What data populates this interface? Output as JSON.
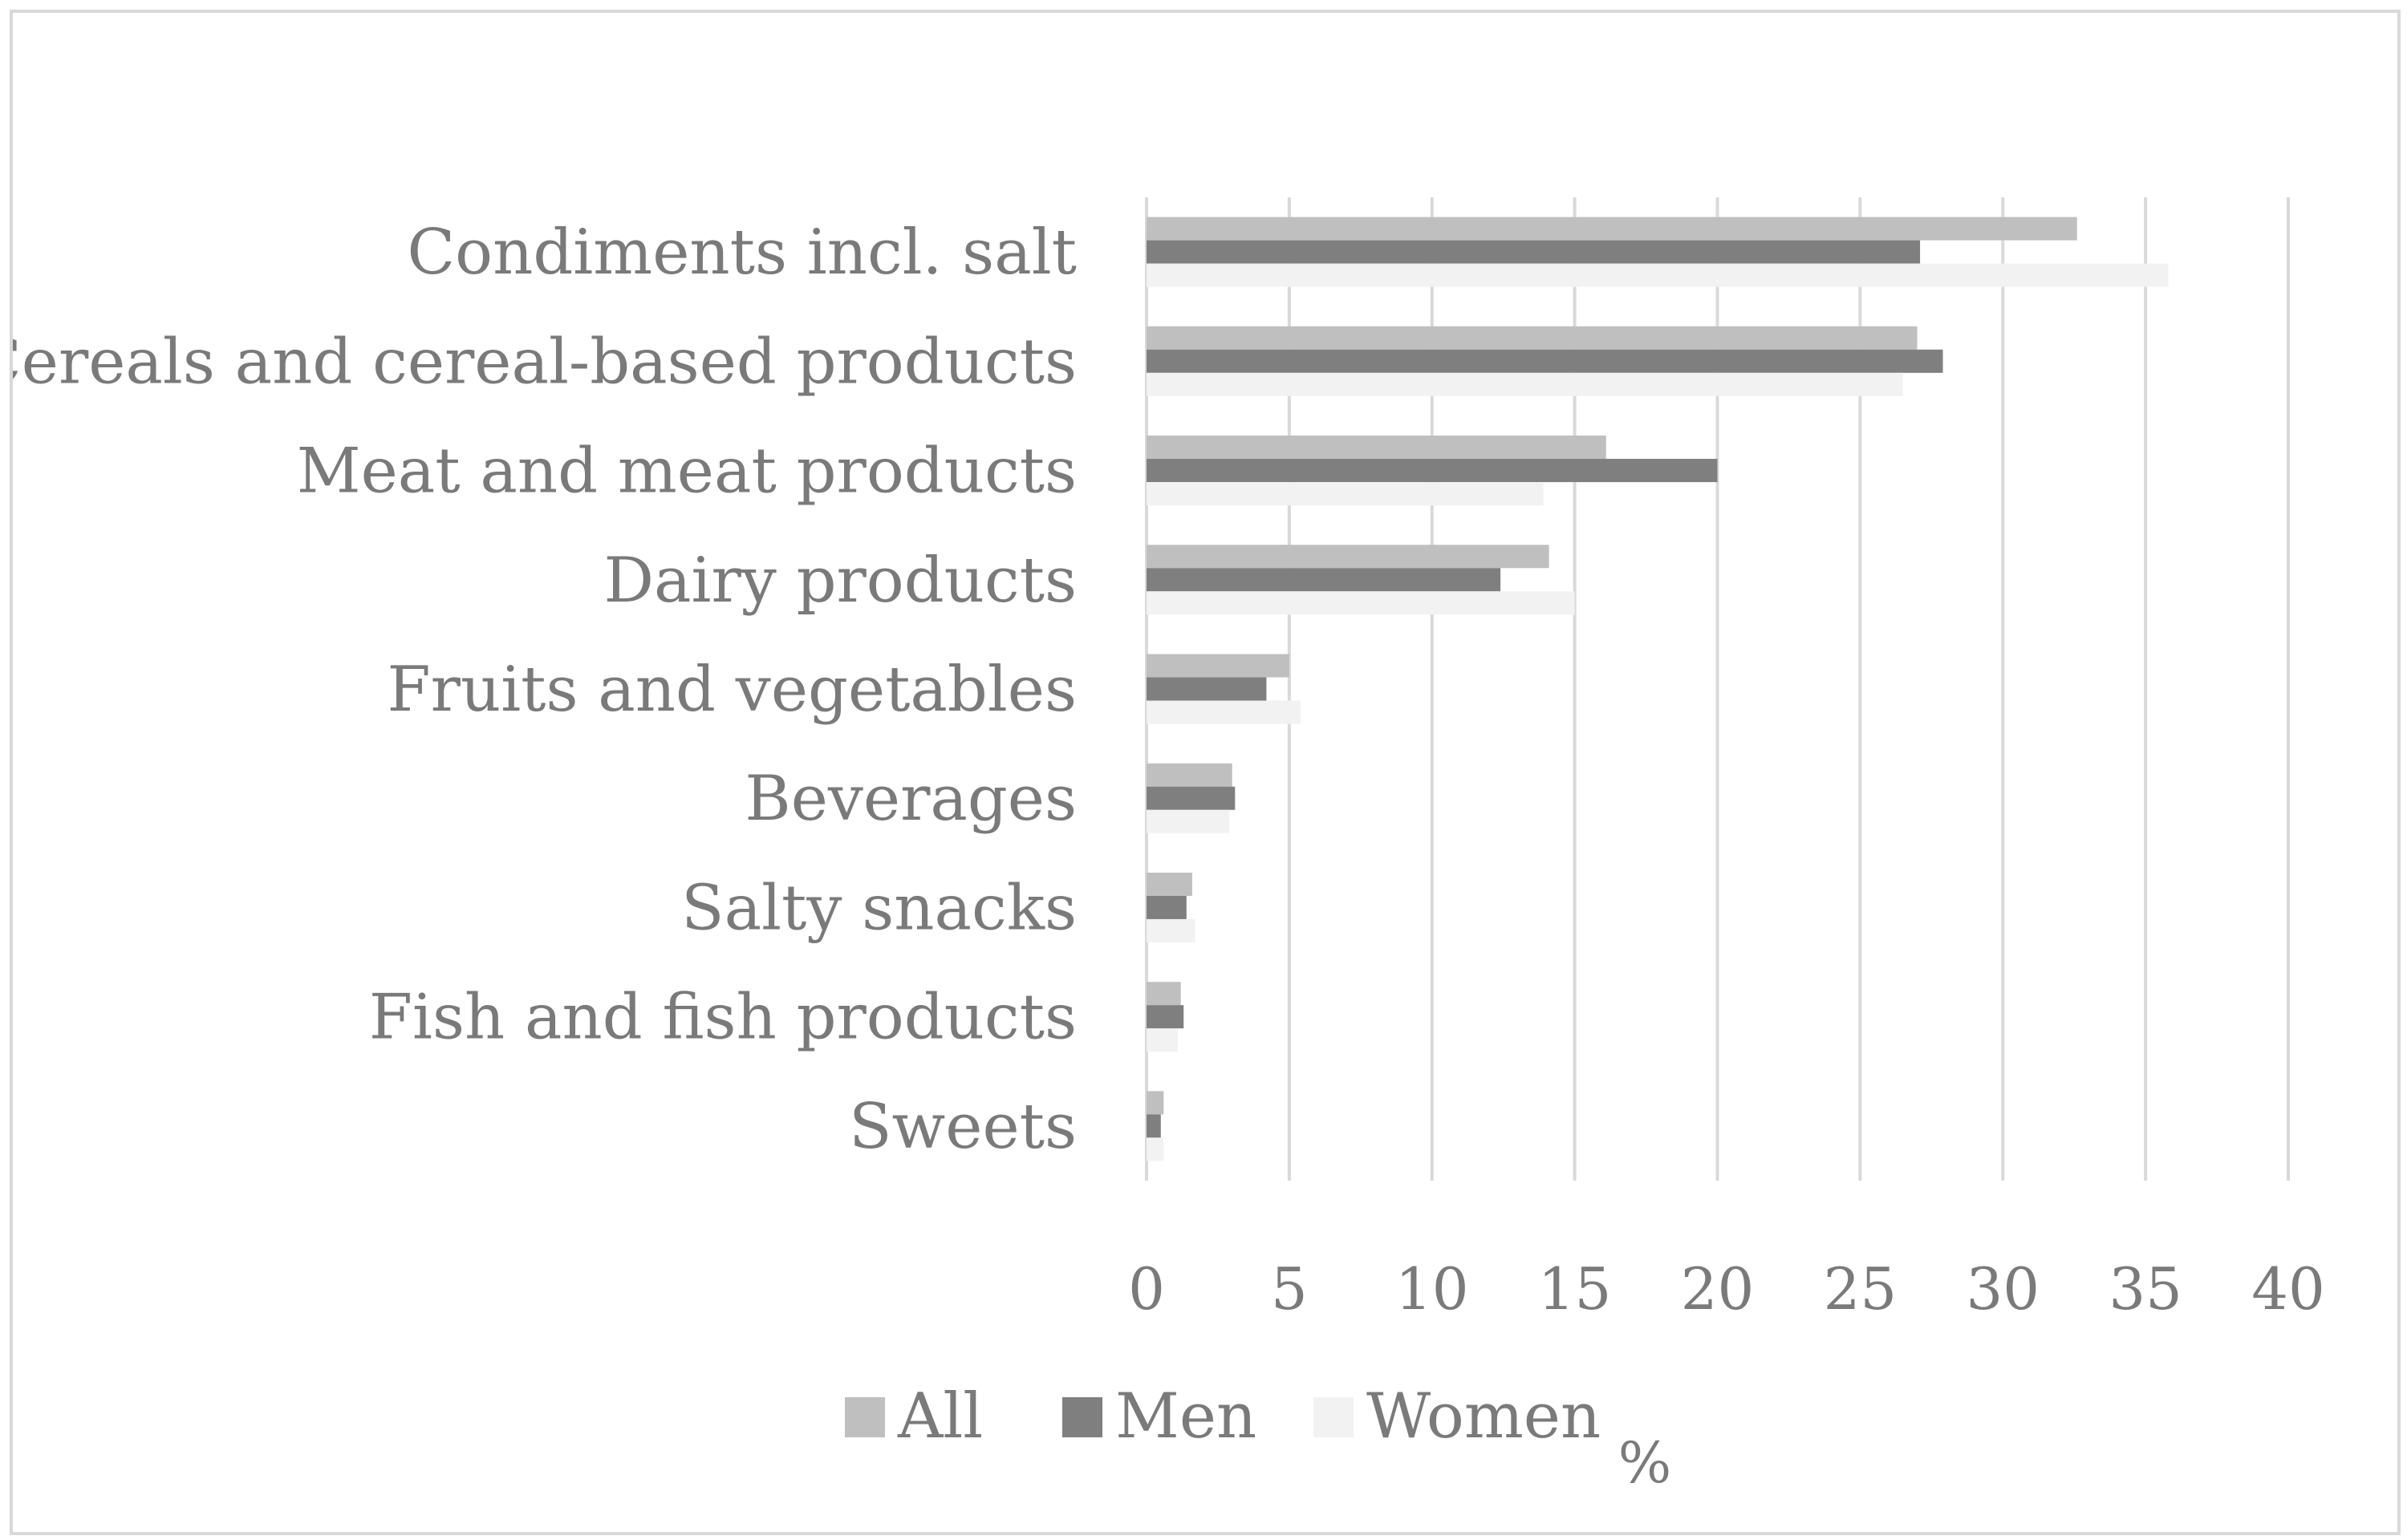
{
  "chart_data": {
    "type": "bar",
    "orientation": "horizontal",
    "categories": [
      "Condiments incl. salt",
      "Cereals and cereal-based products",
      "Meat and meat products",
      "Dairy products",
      "Fruits and vegetables",
      "Beverages",
      "Salty snacks",
      "Fish and fish products",
      "Sweets"
    ],
    "series": [
      {
        "name": "All",
        "color": "#bfbfbf",
        "values": [
          32.6,
          27.0,
          16.1,
          14.1,
          5.0,
          3.0,
          1.6,
          1.2,
          0.6
        ]
      },
      {
        "name": "Men",
        "color": "#7f7f7f",
        "values": [
          27.1,
          27.9,
          20.0,
          12.4,
          4.2,
          3.1,
          1.4,
          1.3,
          0.5
        ]
      },
      {
        "name": "Women",
        "color": "#f2f2f2",
        "values": [
          35.8,
          26.5,
          13.9,
          15.0,
          5.4,
          2.9,
          1.7,
          1.1,
          0.6
        ]
      }
    ],
    "xlim": [
      0,
      40
    ],
    "xticks": [
      "0",
      "5",
      "10",
      "15",
      "20",
      "25",
      "30",
      "35",
      "40"
    ],
    "xlabel": "%",
    "ylabel": "",
    "title": "",
    "grid": true,
    "legend": "bottom"
  }
}
